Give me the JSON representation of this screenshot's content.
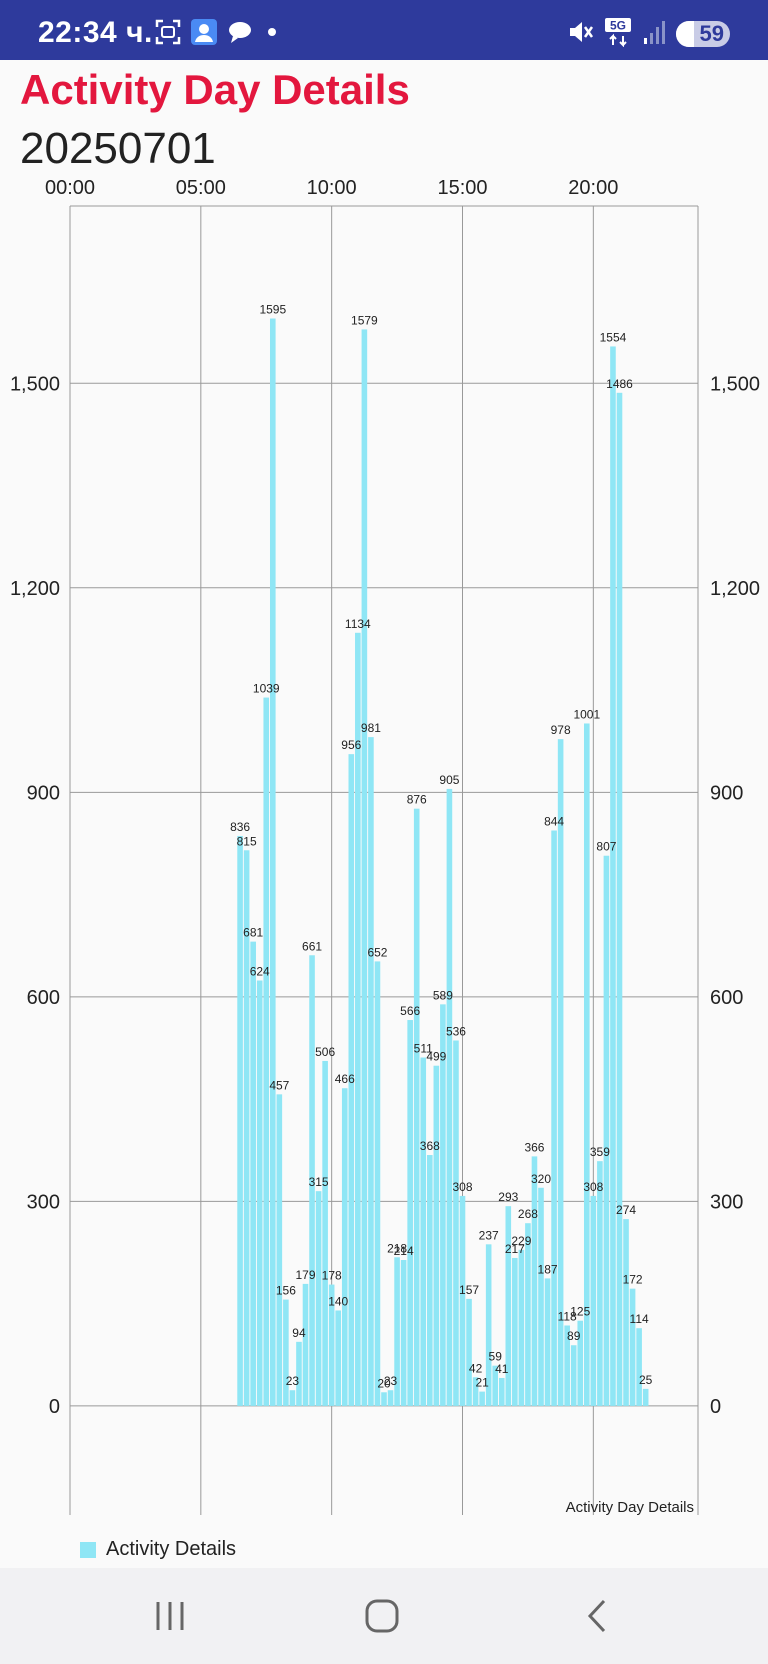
{
  "status_bar": {
    "time": "22:34 ч.",
    "battery": "59",
    "network": "5G",
    "icons_left": [
      "screenshot-icon",
      "contact-icon",
      "chat-icon",
      "dot-icon"
    ],
    "icons_right": [
      "mute-icon",
      "network-5g-icon",
      "signal-icon",
      "battery-icon"
    ]
  },
  "page": {
    "title": "Activity Day Details",
    "date": "20250701"
  },
  "colors": {
    "title": "#e3173e",
    "status_bar": "#2e3a9c",
    "bar": "#8fe6f5"
  },
  "chart_data": {
    "type": "bar",
    "description": "Activity Day Details",
    "x_tick_labels": [
      "00:00",
      "05:00",
      "10:00",
      "15:00",
      "20:00"
    ],
    "x_axis_position": "top",
    "y_ticks": [
      0,
      300,
      600,
      900,
      1200,
      1500
    ],
    "y_tick_labels": [
      "0",
      "300",
      "600",
      "900",
      "1,200",
      "1,500"
    ],
    "ylim": [
      -160,
      1760
    ],
    "xlim_hours": [
      0,
      24
    ],
    "grid": true,
    "legend_position": "bottom-left",
    "series": [
      {
        "name": "Activity Details",
        "x_hours": [
          6.5,
          6.75,
          7.0,
          7.25,
          7.5,
          7.75,
          8.0,
          8.25,
          8.5,
          8.75,
          9.0,
          9.25,
          9.5,
          9.75,
          10.0,
          10.25,
          10.5,
          10.75,
          11.0,
          11.25,
          11.5,
          11.75,
          12.0,
          12.25,
          12.5,
          12.75,
          13.0,
          13.25,
          13.5,
          13.75,
          14.0,
          14.25,
          14.5,
          14.75,
          15.0,
          15.25,
          15.5,
          15.75,
          16.0,
          16.25,
          16.5,
          16.75,
          17.0,
          17.25,
          17.5,
          17.75,
          18.0,
          18.25,
          18.5,
          18.75,
          19.0,
          19.25,
          19.5,
          19.75,
          20.0,
          20.25,
          20.5,
          20.75,
          21.0,
          21.25,
          21.5,
          21.75,
          22.0
        ],
        "values": [
          836,
          815,
          681,
          624,
          1039,
          1595,
          457,
          156,
          23,
          94,
          179,
          661,
          315,
          506,
          178,
          140,
          466,
          956,
          1134,
          1579,
          981,
          652,
          20,
          23,
          218,
          214,
          566,
          876,
          511,
          368,
          499,
          589,
          905,
          536,
          308,
          157,
          42,
          21,
          237,
          59,
          41,
          293,
          217,
          229,
          268,
          366,
          320,
          187,
          844,
          978,
          118,
          89,
          125,
          1001,
          308,
          359,
          807,
          1554,
          1486,
          274,
          172,
          114,
          25
        ]
      }
    ]
  }
}
